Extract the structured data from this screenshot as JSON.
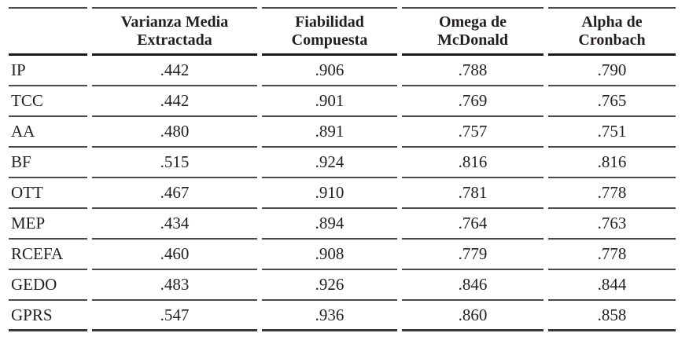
{
  "table": {
    "corner_label": "",
    "columns": [
      {
        "line1": "Varianza Media",
        "line2": "Extractada"
      },
      {
        "line1": "Fiabilidad",
        "line2": "Compuesta"
      },
      {
        "line1": "Omega de",
        "line2": "McDonald"
      },
      {
        "line1": "Alpha de",
        "line2": "Cronbach"
      }
    ],
    "rows": [
      {
        "label": "IP",
        "values": [
          ".442",
          ".906",
          ".788",
          ".790"
        ]
      },
      {
        "label": "TCC",
        "values": [
          ".442",
          ".901",
          ".769",
          ".765"
        ]
      },
      {
        "label": "AA",
        "values": [
          ".480",
          ".891",
          ".757",
          ".751"
        ]
      },
      {
        "label": "BF",
        "values": [
          ".515",
          ".924",
          ".816",
          ".816"
        ]
      },
      {
        "label": "OTT",
        "values": [
          ".467",
          ".910",
          ".781",
          ".778"
        ]
      },
      {
        "label": "MEP",
        "values": [
          ".434",
          ".894",
          ".764",
          ".763"
        ]
      },
      {
        "label": "RCEFA",
        "values": [
          ".460",
          ".908",
          ".779",
          ".778"
        ]
      },
      {
        "label": "GEDO",
        "values": [
          ".483",
          ".926",
          ".846",
          ".844"
        ]
      },
      {
        "label": "GPRS",
        "values": [
          ".547",
          ".936",
          ".860",
          ".858"
        ]
      }
    ]
  },
  "colors": {
    "text": "#231f20",
    "rule_thin": "#4a4a4a",
    "rule_heavy": "#1a1a1a",
    "rule_bottom": "#3a3a3a",
    "background": "#ffffff"
  }
}
